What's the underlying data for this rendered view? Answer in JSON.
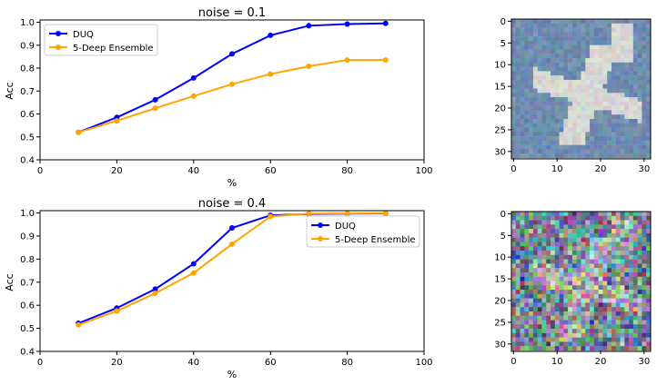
{
  "chart_data": [
    {
      "type": "line",
      "title": "noise = 0.1",
      "xlabel": "%",
      "ylabel": "Acc",
      "xlim": [
        0,
        100
      ],
      "ylim": [
        0.4,
        1.01
      ],
      "xticks": [
        0,
        20,
        40,
        60,
        80,
        100
      ],
      "yticks": [
        0.4,
        0.5,
        0.6,
        0.7,
        0.8,
        0.9,
        1.0
      ],
      "ytick_labels": [
        "0.4",
        "0.5",
        "0.6",
        "0.7",
        "0.8",
        "0.9",
        "1.0"
      ],
      "legend": "upper-left",
      "x": [
        10,
        20,
        30,
        40,
        50,
        60,
        70,
        80,
        90
      ],
      "series": [
        {
          "name": "DUQ",
          "color": "#0000ff",
          "values": [
            0.52,
            0.585,
            0.662,
            0.757,
            0.862,
            0.943,
            0.985,
            0.992,
            0.995
          ]
        },
        {
          "name": "5-Deep Ensemble",
          "color": "#ffa500",
          "values": [
            0.52,
            0.57,
            0.625,
            0.678,
            0.73,
            0.774,
            0.808,
            0.835,
            0.835
          ]
        }
      ]
    },
    {
      "type": "line",
      "title": "noise = 0.4",
      "xlabel": "%",
      "ylabel": "Acc",
      "xlim": [
        0,
        100
      ],
      "ylim": [
        0.4,
        1.01
      ],
      "xticks": [
        0,
        20,
        40,
        60,
        80,
        100
      ],
      "yticks": [
        0.4,
        0.5,
        0.6,
        0.7,
        0.8,
        0.9,
        1.0
      ],
      "ytick_labels": [
        "0.4",
        "0.5",
        "0.6",
        "0.7",
        "0.8",
        "0.9",
        "1.0"
      ],
      "legend": "upper-right",
      "x": [
        10,
        20,
        30,
        40,
        50,
        60,
        70,
        80,
        90
      ],
      "series": [
        {
          "name": "DUQ",
          "color": "#0000ff",
          "values": [
            0.522,
            0.588,
            0.67,
            0.78,
            0.935,
            0.99,
            0.995,
            0.997,
            0.998
          ]
        },
        {
          "name": "5-Deep Ensemble",
          "color": "#ffa500",
          "values": [
            0.515,
            0.575,
            0.652,
            0.74,
            0.865,
            0.985,
            0.997,
            0.998,
            0.999
          ]
        }
      ]
    },
    {
      "type": "heatmap",
      "description_key": "noisy-image",
      "xlim": [
        0,
        32
      ],
      "ylim": [
        32,
        0
      ],
      "xticks": [
        0,
        10,
        20,
        30
      ],
      "yticks": [
        0,
        5,
        10,
        15,
        20,
        25,
        30
      ],
      "noise": 0.1
    },
    {
      "type": "heatmap",
      "description_key": "noisy-image",
      "xlim": [
        0,
        32
      ],
      "ylim": [
        32,
        0
      ],
      "xticks": [
        0,
        10,
        20,
        30
      ],
      "yticks": [
        0,
        5,
        10,
        15,
        20,
        25,
        30
      ],
      "noise": 0.4
    }
  ]
}
